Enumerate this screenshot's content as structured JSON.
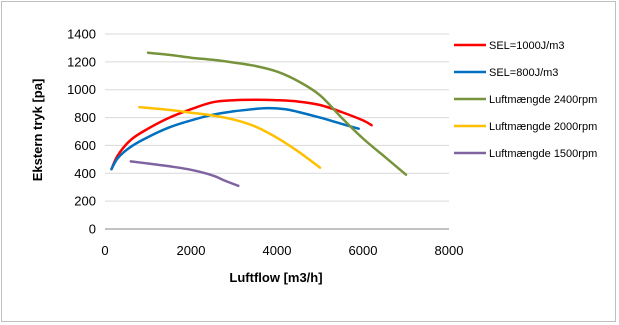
{
  "chart_data": {
    "type": "line",
    "title": "",
    "xlabel": "Luftflow [m3/h]",
    "ylabel": "Ekstern tryk [pa]",
    "xlim": [
      0,
      8000
    ],
    "ylim": [
      0,
      1400
    ],
    "xticks": [
      0,
      2000,
      4000,
      6000,
      8000
    ],
    "yticks": [
      0,
      200,
      400,
      600,
      800,
      1000,
      1200,
      1400
    ],
    "grid": "horizontal",
    "legend": "right",
    "series": [
      {
        "name": "SEL=1000J/m3",
        "color": "#ff0000",
        "x": [
          150,
          300,
          600,
          1000,
          1500,
          2000,
          2500,
          3000,
          3500,
          4000,
          4500,
          5000,
          5500,
          6000,
          6200
        ],
        "y": [
          430,
          530,
          640,
          720,
          800,
          860,
          910,
          925,
          928,
          925,
          915,
          890,
          840,
          780,
          745
        ]
      },
      {
        "name": "SEL=800J/m3",
        "color": "#0070c0",
        "x": [
          150,
          300,
          600,
          1000,
          1500,
          2000,
          2500,
          3000,
          3500,
          3800,
          4200,
          4500,
          5000,
          5500,
          5900
        ],
        "y": [
          430,
          510,
          590,
          660,
          730,
          780,
          820,
          845,
          862,
          868,
          860,
          840,
          800,
          755,
          720
        ]
      },
      {
        "name": "Luftmængde 2400rpm",
        "color": "#77933c",
        "x": [
          1000,
          1500,
          2000,
          2500,
          3000,
          3500,
          4000,
          4500,
          5000,
          5500,
          6000,
          6500,
          7000
        ],
        "y": [
          1265,
          1250,
          1230,
          1215,
          1195,
          1170,
          1130,
          1060,
          960,
          800,
          650,
          520,
          390
        ]
      },
      {
        "name": "Luftmængde 2000rpm",
        "color": "#ffc000",
        "x": [
          800,
          1500,
          2000,
          2500,
          3000,
          3500,
          4000,
          4500,
          5000
        ],
        "y": [
          875,
          855,
          835,
          815,
          785,
          735,
          655,
          555,
          440
        ]
      },
      {
        "name": "Luftmængde 1500rpm",
        "color": "#8064a2",
        "x": [
          600,
          1000,
          1500,
          2000,
          2500,
          2800,
          3100
        ],
        "y": [
          485,
          470,
          450,
          425,
          385,
          345,
          310
        ]
      }
    ]
  }
}
